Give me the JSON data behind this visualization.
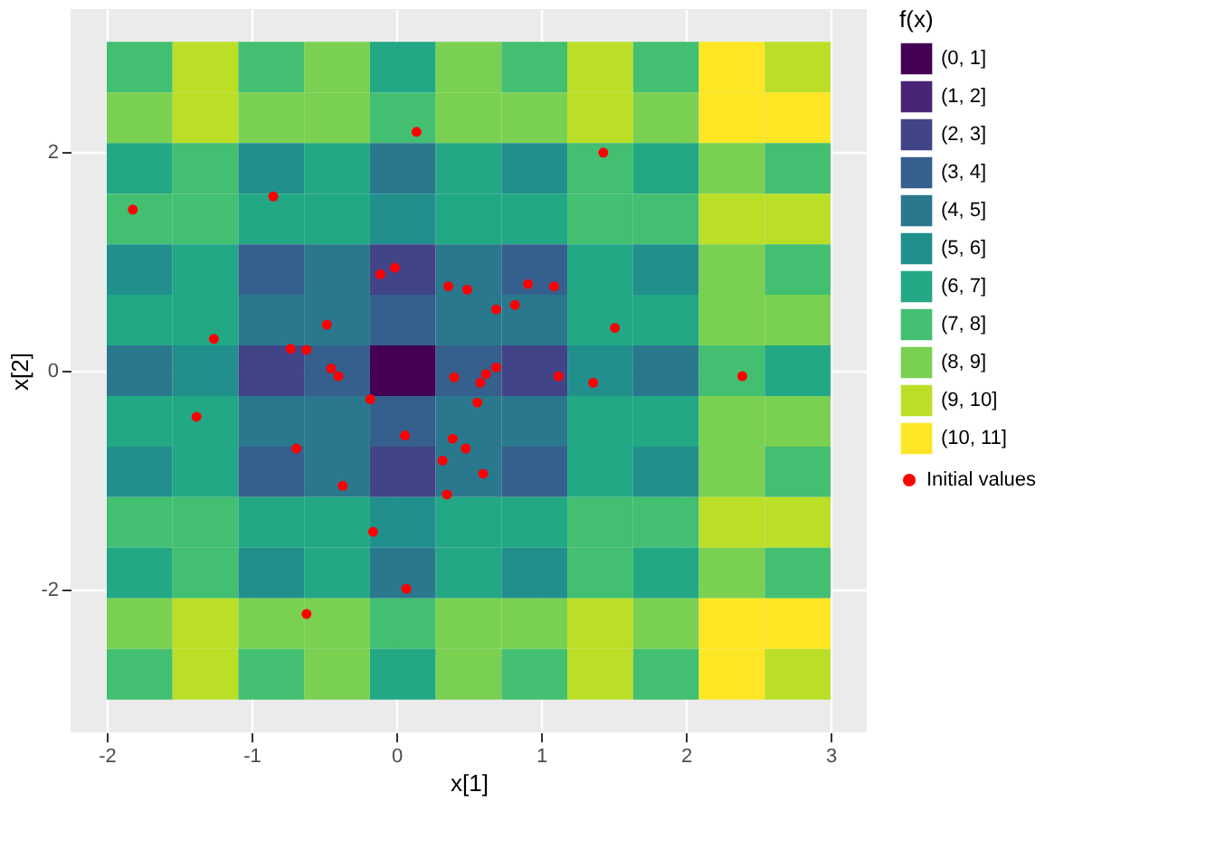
{
  "chart_data": [
    {
      "type": "heatmap",
      "clabel": "f(x)",
      "grid": true,
      "categories": [
        null,
        null,
        null,
        null,
        null,
        null,
        null,
        null,
        null,
        null,
        null
      ],
      "y_categories": [
        null,
        null,
        null,
        null,
        null,
        null,
        null,
        null,
        null,
        null,
        null,
        null,
        null
      ],
      "cells": [
        [
          7.5,
          9.5,
          7.5,
          8.5,
          6.5,
          8.5,
          7.5,
          9.5,
          7.5,
          10.5,
          9.5
        ],
        [
          8.5,
          9.5,
          8.5,
          8.5,
          7.5,
          8.5,
          8.5,
          9.5,
          8.5,
          10.5,
          10.5
        ],
        [
          6.5,
          7.5,
          5.5,
          6.5,
          4.5,
          6.5,
          5.5,
          7.5,
          6.5,
          8.5,
          7.5
        ],
        [
          7.5,
          7.5,
          6.5,
          6.5,
          5.5,
          6.5,
          6.5,
          7.5,
          7.5,
          9.5,
          9.5
        ],
        [
          5.5,
          6.5,
          3.5,
          4.5,
          2.5,
          4.5,
          3.5,
          6.5,
          5.5,
          8.5,
          7.5
        ],
        [
          6.5,
          6.5,
          4.5,
          4.5,
          3.5,
          4.5,
          4.5,
          6.5,
          6.5,
          8.5,
          8.5
        ],
        [
          4.5,
          5.5,
          2.5,
          3.5,
          0.5,
          3.5,
          2.5,
          5.5,
          4.5,
          7.5,
          6.5
        ],
        [
          6.5,
          6.5,
          4.5,
          4.5,
          3.5,
          4.5,
          4.5,
          6.5,
          6.5,
          8.5,
          8.5
        ],
        [
          5.5,
          6.5,
          3.5,
          4.5,
          2.5,
          4.5,
          3.5,
          6.5,
          5.5,
          8.5,
          7.5
        ],
        [
          7.5,
          7.5,
          6.5,
          6.5,
          5.5,
          6.5,
          6.5,
          7.5,
          7.5,
          9.5,
          9.5
        ],
        [
          6.5,
          7.5,
          5.5,
          6.5,
          4.5,
          6.5,
          5.5,
          7.5,
          6.5,
          8.5,
          7.5
        ],
        [
          8.5,
          9.5,
          8.5,
          8.5,
          7.5,
          8.5,
          8.5,
          9.5,
          8.5,
          10.5,
          10.5
        ],
        [
          7.5,
          9.5,
          7.5,
          8.5,
          6.5,
          8.5,
          7.5,
          9.5,
          7.5,
          10.5,
          9.5
        ]
      ],
      "cticks": [
        {
          "value": 0.5,
          "label": "(0, 1]"
        },
        {
          "value": 1.5,
          "label": "(1, 2]"
        },
        {
          "value": 2.5,
          "label": "(2, 3]"
        },
        {
          "value": 3.5,
          "label": "(3, 4]"
        },
        {
          "value": 4.5,
          "label": "(4, 5]"
        },
        {
          "value": 5.5,
          "label": "(5, 6]"
        },
        {
          "value": 6.5,
          "label": "(6, 7]"
        },
        {
          "value": 7.5,
          "label": "(7, 8]"
        },
        {
          "value": 8.5,
          "label": "(8, 9]"
        },
        {
          "value": 9.5,
          "label": "(9, 10]"
        },
        {
          "value": 10.5,
          "label": "(10, 11]"
        }
      ],
      "colors": [
        "#440154",
        "#482576",
        "#414487",
        "#35608d",
        "#2a788e",
        "#21908c",
        "#22a884",
        "#43bf71",
        "#7ad151",
        "#bbdf27",
        "#fde725"
      ]
    },
    {
      "type": "scatter",
      "xlabel": "x[1]",
      "ylabel": "x[2]",
      "marker": "circle",
      "grid": true,
      "legend": "right",
      "series": [
        {
          "name": "Initial values",
          "color": "#ff0000",
          "x": [
            0.14,
            1.43,
            -1.82,
            -0.85,
            -0.01,
            -0.11,
            0.36,
            0.49,
            0.82,
            0.69,
            0.91,
            1.09,
            1.51,
            -1.26,
            -0.48,
            -0.73,
            -0.62,
            -0.45,
            -0.4,
            -0.18,
            0.4,
            0.58,
            0.69,
            0.62,
            0.56,
            1.12,
            1.36,
            2.39,
            -1.38,
            -0.69,
            0.06,
            0.39,
            0.48,
            0.32,
            -0.37,
            0.35,
            0.6,
            -0.16,
            0.07,
            -0.62
          ],
          "values": [
            2.18,
            1.99,
            1.47,
            1.59,
            0.94,
            0.88,
            0.77,
            0.74,
            0.6,
            0.56,
            0.79,
            0.77,
            0.39,
            0.29,
            0.42,
            0.2,
            0.19,
            0.02,
            -0.05,
            -0.26,
            -0.06,
            -0.11,
            0.03,
            -0.03,
            -0.29,
            -0.05,
            -0.11,
            -0.05,
            -0.42,
            -0.71,
            -0.59,
            -0.62,
            -0.71,
            -0.82,
            -1.05,
            -1.13,
            -0.94,
            -1.47,
            -1.99,
            -2.22
          ]
        }
      ],
      "xlim": [
        -2.25,
        3.25
      ],
      "xticks": [
        -2,
        -1,
        0,
        1,
        2,
        3
      ],
      "ylim": [
        -3.3,
        3.3
      ],
      "yticks": [
        -2,
        0,
        2
      ]
    }
  ]
}
